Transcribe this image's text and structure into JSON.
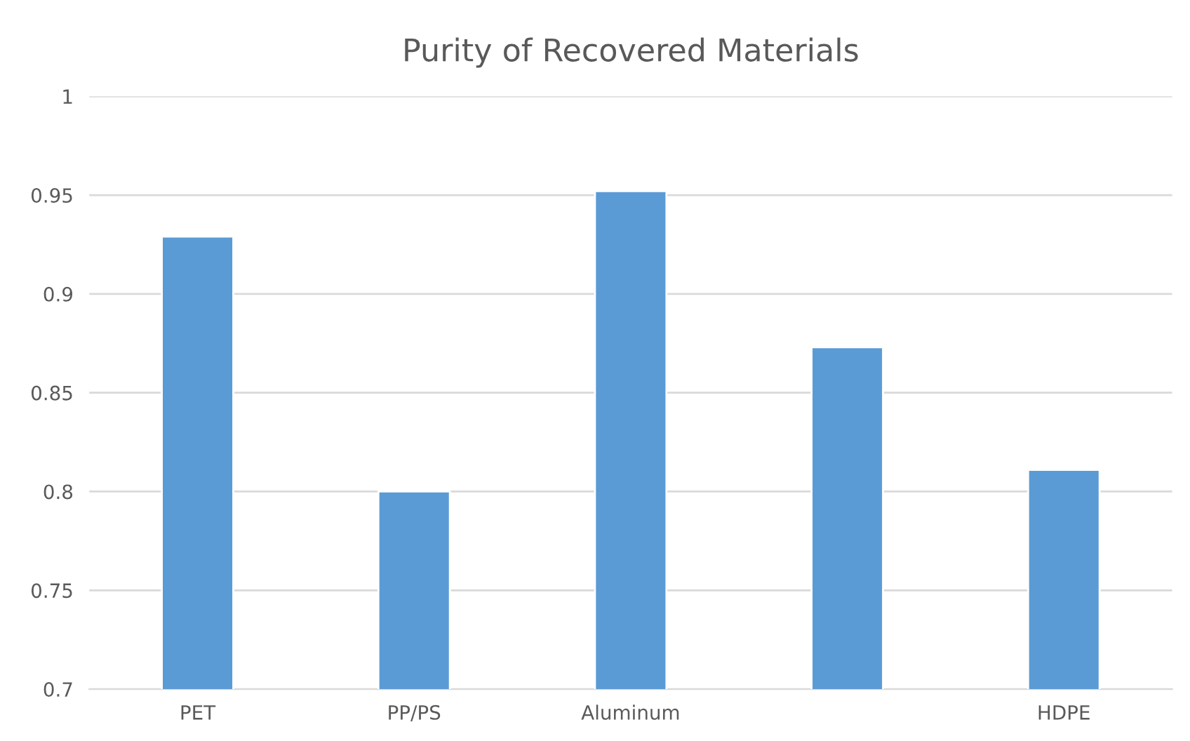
{
  "chart_data": {
    "type": "bar",
    "title": "Purity of Recovered Materials",
    "categories": [
      "PET",
      "PP/PS",
      "Aluminum",
      null,
      "HDPE"
    ],
    "values": [
      0.929,
      0.8,
      0.952,
      0.873,
      0.811
    ],
    "color": "#5b9bd5",
    "ylim": [
      0.7,
      1
    ],
    "yticks": [
      0.7,
      0.75,
      0.8,
      0.85,
      0.9,
      0.95,
      1
    ],
    "grid": "y"
  }
}
